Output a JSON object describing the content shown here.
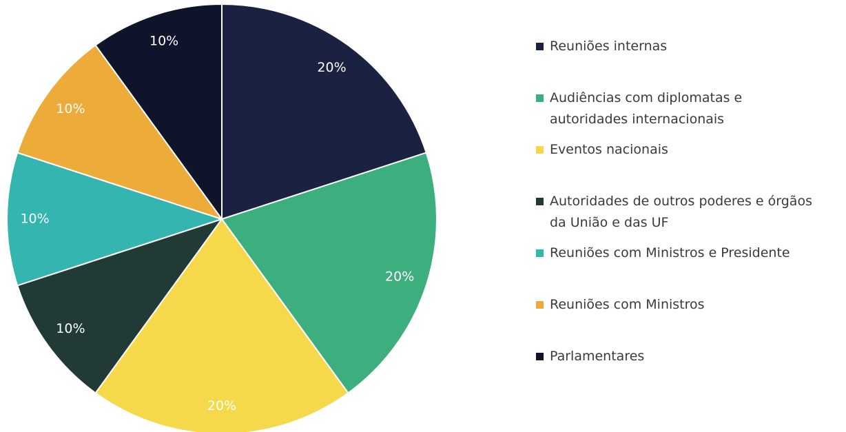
{
  "chart_data": {
    "type": "pie",
    "categories": [
      "Reuniões internas",
      "Audiências com diplomatas e autoridades internacionais",
      "Eventos nacionais",
      "Autoridades de outros poderes e órgãos da União e das UF",
      "Reuniões com Ministros e Presidente",
      "Reuniões com Ministros",
      "Parlamentares"
    ],
    "values": [
      20,
      20,
      20,
      10,
      10,
      10,
      10
    ],
    "value_labels": [
      "20%",
      "20%",
      "20%",
      "10%",
      "10%",
      "10%",
      "10%"
    ],
    "colors": [
      "#1b2140",
      "#3daf7e",
      "#f5d94a",
      "#213a35",
      "#35b5b0",
      "#edab3a",
      "#10142a"
    ],
    "legend": "right"
  }
}
